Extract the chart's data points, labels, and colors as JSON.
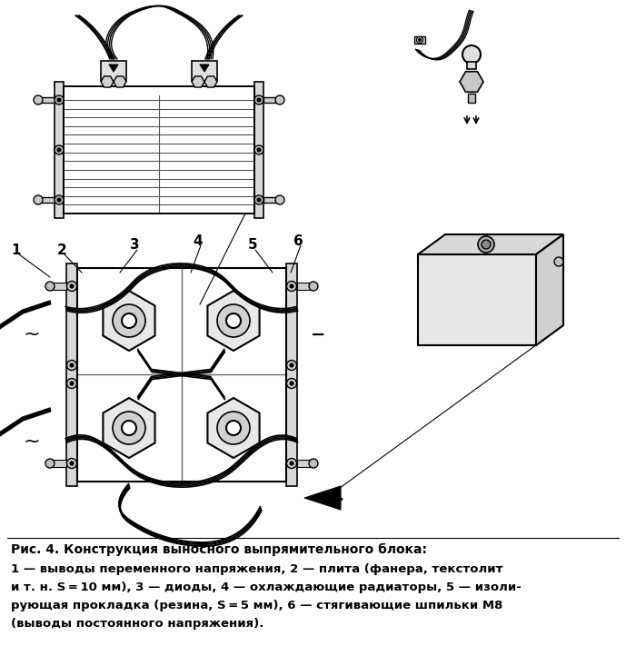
{
  "title_line1": "Рис. 4. Конструкция выносного выпрямительного блока:",
  "title_line2": "1 — выводы переменного напряжения, 2 — плита (фанера, текстолит",
  "title_line3": "и т. н. S = 10 мм), 3 — диоды, 4 — охлаждающие радиаторы, 5 — изоли-",
  "title_line4": "рующая прокладка (резина, S = 5 мм), 6 — стягивающие шпильки М8",
  "title_line5": "(выводы постоянного напряжения).",
  "bg_color": "#ffffff",
  "text_color": "#000000",
  "fig_width": 6.89,
  "fig_height": 7.22,
  "dpi": 100
}
